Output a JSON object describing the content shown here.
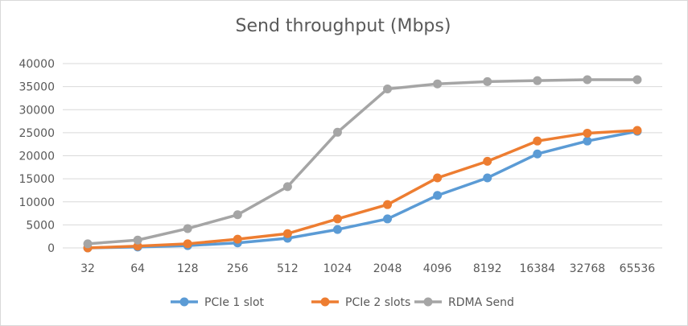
{
  "chart_data": {
    "type": "line",
    "title": "Send throughput (Mbps)",
    "xlabel": "",
    "ylabel": "",
    "categories": [
      "32",
      "64",
      "128",
      "256",
      "512",
      "1024",
      "2048",
      "4096",
      "8192",
      "16384",
      "32768",
      "65536"
    ],
    "ylim": [
      0,
      40000
    ],
    "yticks": [
      "0",
      "5000",
      "10000",
      "15000",
      "20000",
      "25000",
      "30000",
      "35000",
      "40000"
    ],
    "grid": true,
    "legend_position": "bottom",
    "series": [
      {
        "name": "PCIe 1 slot",
        "color": "#5B9BD5",
        "values": [
          0,
          200,
          500,
          1100,
          2100,
          4000,
          6300,
          11400,
          15200,
          20400,
          23200,
          25300
        ]
      },
      {
        "name": "PCIe 2 slots",
        "color": "#ED7D31",
        "values": [
          0,
          400,
          900,
          1900,
          3100,
          6300,
          9400,
          15200,
          18800,
          23200,
          24900,
          25500
        ]
      },
      {
        "name": "RDMA Send",
        "color": "#A5A5A5",
        "values": [
          900,
          1700,
          4200,
          7200,
          13300,
          25100,
          34500,
          35600,
          36100,
          36300,
          36500,
          36500
        ]
      }
    ]
  }
}
